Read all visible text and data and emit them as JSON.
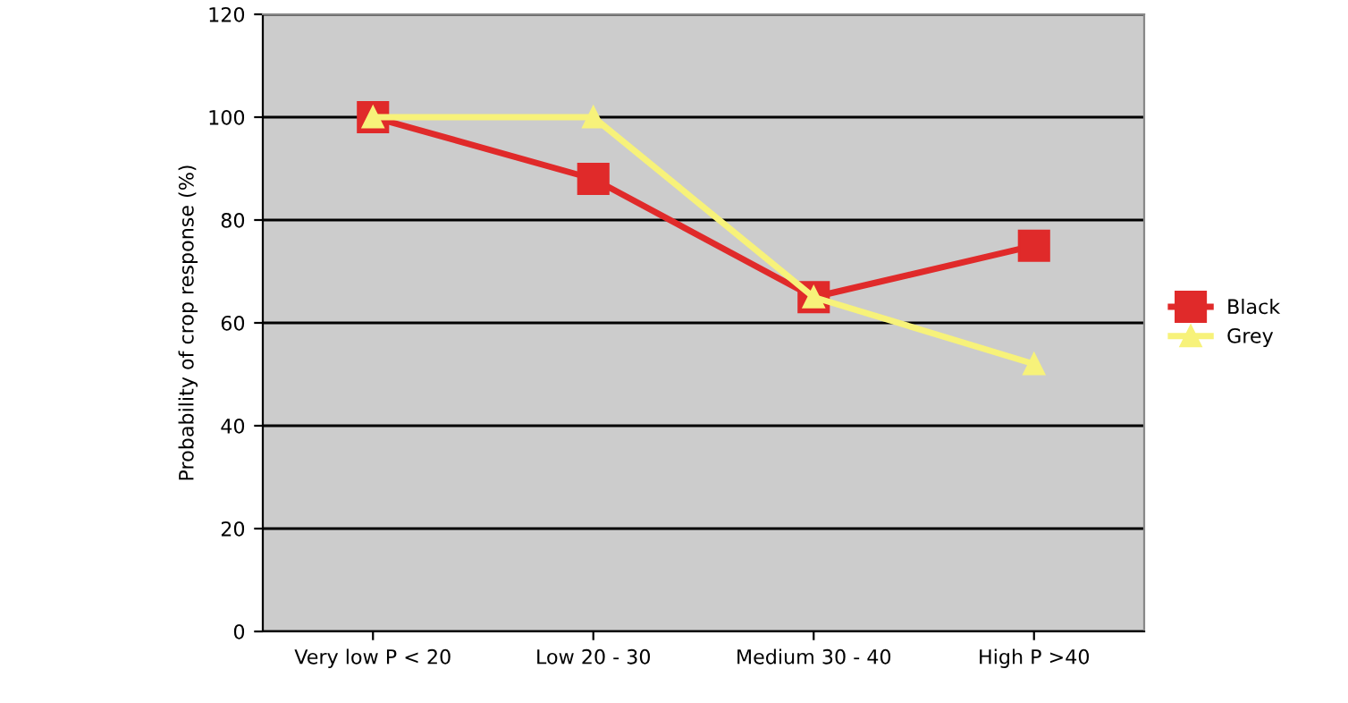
{
  "chart_data": {
    "type": "line",
    "ylabel": "Probability of crop response (%)",
    "categories": [
      "Very low P < 20",
      "Low 20 - 30",
      "Medium 30 - 40",
      "High P >40"
    ],
    "series": [
      {
        "name": "Black",
        "color": "#e02a2a",
        "values": [
          100,
          88,
          65,
          75
        ],
        "marker": "square"
      },
      {
        "name": "Grey",
        "color": "#f7f27a",
        "values": [
          100,
          100,
          65,
          52
        ],
        "marker": "triangle"
      }
    ],
    "ylim": [
      0,
      120
    ],
    "yticks": [
      0,
      20,
      40,
      60,
      80,
      100,
      120
    ],
    "grid": "y",
    "legend": "right",
    "line_style": "solid"
  }
}
